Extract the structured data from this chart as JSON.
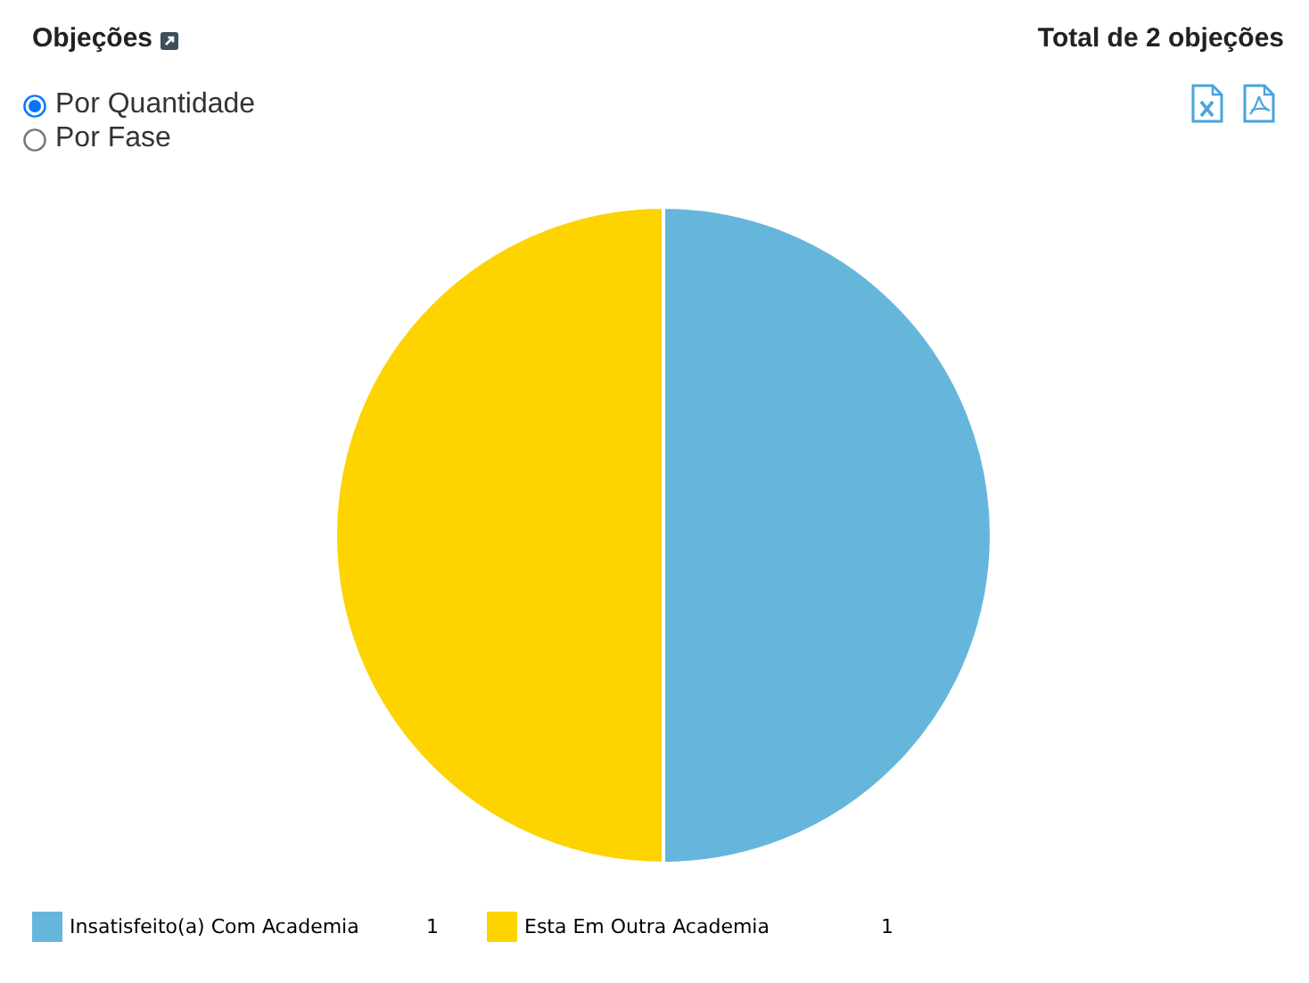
{
  "chart_data": {
    "type": "pie",
    "title": "Objeções",
    "subtitle": "Total de 2 objeções",
    "annotations": [
      "Por Quantidade",
      "Por Fase"
    ],
    "categories": [
      "Insatisfeito(a) Com Academia",
      "Esta Em Outra Academia"
    ],
    "values": [
      1,
      1
    ],
    "colors": [
      "#66b6dc",
      "#fdd300"
    ],
    "legend": "bottom",
    "data_labels": true
  }
}
